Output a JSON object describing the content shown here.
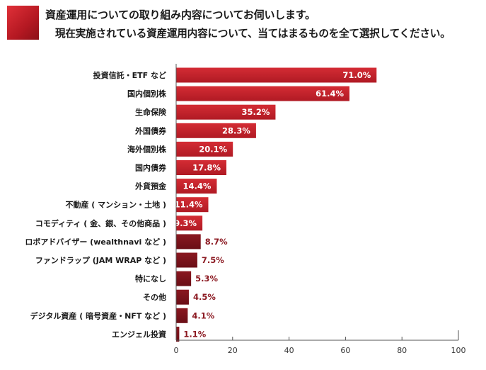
{
  "header": {
    "title_line1": "資産運用についての取り組み内容についてお伺いします。",
    "title_line2": "現在実施されている資産運用内容について、当てはまるものを全て選択してください。"
  },
  "chart_data": {
    "type": "bar",
    "orientation": "horizontal",
    "categories": [
      "投資信託・ETF など",
      "国内個別株",
      "生命保険",
      "外国債券",
      "海外個別株",
      "国内債券",
      "外貨預金",
      "不動産 ( マンション・土地 )",
      "コモディティ ( 金、銀、その他商品 )",
      "ロボアドバイザー (wealthnavi など )",
      "ファンドラップ (JAM WRAP など )",
      "特になし",
      "その他",
      "デジタル資産 ( 暗号資産・NFT など )",
      "エンジェル投資"
    ],
    "values": [
      71.0,
      61.4,
      35.2,
      28.3,
      20.1,
      17.8,
      14.4,
      11.4,
      9.3,
      8.7,
      7.5,
      5.3,
      4.5,
      4.1,
      1.1
    ],
    "value_labels": [
      "71.0%",
      "61.4%",
      "35.2%",
      "28.3%",
      "20.1%",
      "17.8%",
      "14.4%",
      "11.4%",
      "9.3%",
      "8.7%",
      "7.5%",
      "5.3%",
      "4.5%",
      "4.1%",
      "1.1%"
    ],
    "xlim": [
      0,
      100
    ],
    "xticks": [
      0,
      20,
      40,
      60,
      80,
      100
    ],
    "xtick_labels": [
      "0",
      "20",
      "40",
      "60",
      "80",
      "100"
    ],
    "grid": false,
    "colors": {
      "bar_bright": "#c4202a",
      "bar_dark": "#6e1018",
      "label_inside": "#ffffff",
      "label_outside": "#8c1a22",
      "axis": "#555555"
    }
  }
}
